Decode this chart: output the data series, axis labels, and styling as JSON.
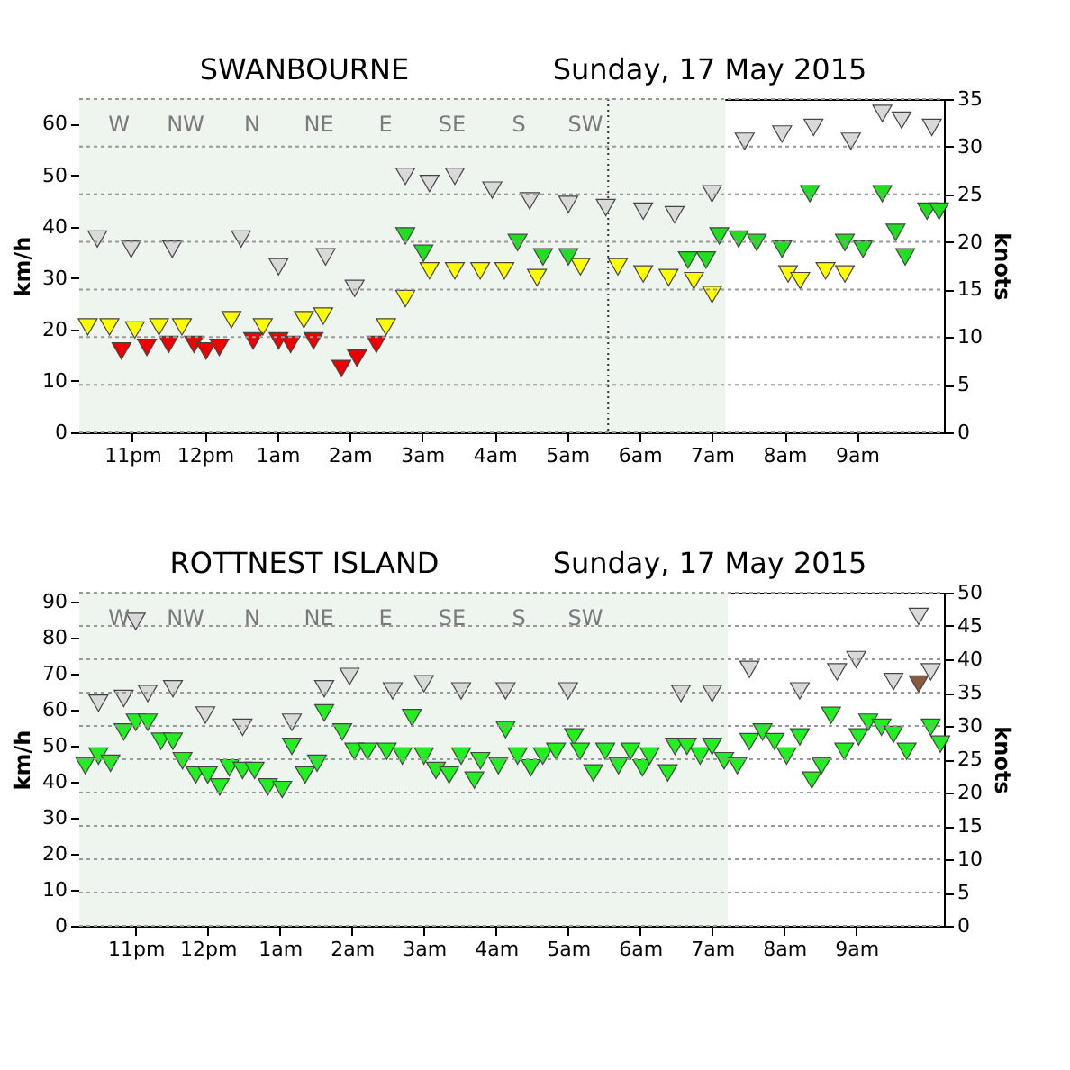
{
  "chart_data": [
    {
      "type": "scatter",
      "title": "SWANBOURNE",
      "subtitle": "Sunday, 17 May 2015",
      "ylabel": "km/h",
      "y2label": "knots",
      "marker": "triangle",
      "grid": "y",
      "annotations": [
        "W",
        "NW",
        "N",
        "NE",
        "E",
        "SE",
        "S",
        "SW"
      ],
      "xlim": [
        "2015-05-16T22:16",
        "2015-05-17T10:12"
      ],
      "xticks": [
        {
          "value": "2015-05-16T23:00",
          "label": "11pm"
        },
        {
          "value": "2015-05-17T00:00",
          "label": "12pm"
        },
        {
          "value": "2015-05-17T01:00",
          "label": "1am"
        },
        {
          "value": "2015-05-17T02:00",
          "label": "2am"
        },
        {
          "value": "2015-05-17T03:00",
          "label": "3am"
        },
        {
          "value": "2015-05-17T04:00",
          "label": "4am"
        },
        {
          "value": "2015-05-17T05:00",
          "label": "5am"
        },
        {
          "value": "2015-05-17T06:00",
          "label": "6am"
        },
        {
          "value": "2015-05-17T07:00",
          "label": "7am"
        },
        {
          "value": "2015-05-17T08:00",
          "label": "8am"
        },
        {
          "value": "2015-05-17T09:00",
          "label": "9am"
        }
      ],
      "ylim": [
        0,
        64.8
      ],
      "yticks": [
        0,
        10,
        20,
        30,
        40,
        50,
        60
      ],
      "y2lim": [
        0,
        35
      ],
      "y2ticks": [
        0,
        5,
        10,
        15,
        20,
        25,
        30,
        35
      ],
      "ref_lines": [
        {
          "axis": "x",
          "value": "2015-05-17T05:34",
          "line_style": "dotted",
          "color": "#333333"
        }
      ],
      "bands": [
        {
          "axis": "x",
          "from": "2015-05-16T22:16",
          "to": "2015-05-17T07:11",
          "color": "#eef5ee"
        }
      ],
      "series": [
        {
          "color": "#d9d9d9",
          "x": [
            "2015-05-16T22:31",
            "2015-05-16T22:59",
            "2015-05-16T23:33",
            "2015-05-17T00:30",
            "2015-05-17T01:01",
            "2015-05-17T01:40",
            "2015-05-17T02:04",
            "2015-05-17T02:46",
            "2015-05-17T03:06",
            "2015-05-17T03:27",
            "2015-05-17T03:58",
            "2015-05-17T04:29",
            "2015-05-17T05:01",
            "2015-05-17T05:32",
            "2015-05-17T06:03",
            "2015-05-17T06:29",
            "2015-05-17T07:00",
            "2015-05-17T07:27",
            "2015-05-17T07:58",
            "2015-05-17T08:24",
            "2015-05-17T08:55",
            "2015-05-17T09:21",
            "2015-05-17T09:37",
            "2015-05-17T10:02"
          ],
          "values": [
            37.6,
            35.6,
            35.6,
            37.6,
            32.2,
            34.1,
            28.0,
            49.8,
            48.4,
            49.8,
            47.1,
            45.0,
            44.3,
            43.7,
            43.0,
            42.3,
            46.4,
            56.6,
            58.0,
            59.3,
            56.6,
            62.0,
            60.7,
            59.3
          ]
        },
        {
          "color": "#ffff00",
          "x": [
            "2015-05-16T22:23",
            "2015-05-16T22:41",
            "2015-05-16T23:02",
            "2015-05-16T23:22",
            "2015-05-16T23:41",
            "2015-05-17T00:22",
            "2015-05-17T00:48",
            "2015-05-17T01:22",
            "2015-05-17T01:38",
            "2015-05-17T02:30",
            "2015-05-17T02:46",
            "2015-05-17T03:06",
            "2015-05-17T03:27",
            "2015-05-17T03:48",
            "2015-05-17T04:08",
            "2015-05-17T04:35",
            "2015-05-17T05:11",
            "2015-05-17T05:42",
            "2015-05-17T06:03",
            "2015-05-17T06:24",
            "2015-05-17T06:45",
            "2015-05-17T07:00",
            "2015-05-17T08:03",
            "2015-05-17T08:13",
            "2015-05-17T08:34",
            "2015-05-17T08:50"
          ],
          "values": [
            20.5,
            20.5,
            19.9,
            20.5,
            20.5,
            21.9,
            20.5,
            21.9,
            22.6,
            20.5,
            26.0,
            31.4,
            31.4,
            31.4,
            31.4,
            30.1,
            32.2,
            32.2,
            30.8,
            30.1,
            29.5,
            26.8,
            30.8,
            29.5,
            31.4,
            30.8
          ]
        },
        {
          "color": "#ee0000",
          "x": [
            "2015-05-16T22:51",
            "2015-05-16T23:12",
            "2015-05-16T23:30",
            "2015-05-16T23:51",
            "2015-05-17T00:01",
            "2015-05-17T00:12",
            "2015-05-17T00:40",
            "2015-05-17T01:01",
            "2015-05-17T01:11",
            "2015-05-17T01:30",
            "2015-05-17T01:53",
            "2015-05-17T02:06",
            "2015-05-17T02:22"
          ],
          "values": [
            15.8,
            16.5,
            17.1,
            17.1,
            15.8,
            16.5,
            17.8,
            17.8,
            17.1,
            17.8,
            12.4,
            14.4,
            17.1
          ]
        },
        {
          "color": "#22dd22",
          "x": [
            "2015-05-17T02:46",
            "2015-05-17T03:01",
            "2015-05-17T04:19",
            "2015-05-17T04:40",
            "2015-05-17T05:01",
            "2015-05-17T06:40",
            "2015-05-17T06:55",
            "2015-05-17T07:06",
            "2015-05-17T07:22",
            "2015-05-17T07:37",
            "2015-05-17T07:58",
            "2015-05-17T08:21",
            "2015-05-17T08:50",
            "2015-05-17T09:05",
            "2015-05-17T09:21",
            "2015-05-17T09:32",
            "2015-05-17T09:40",
            "2015-05-17T09:58",
            "2015-05-17T10:08"
          ],
          "values": [
            38.2,
            34.8,
            36.9,
            34.1,
            34.1,
            33.5,
            33.5,
            38.2,
            37.6,
            36.9,
            35.6,
            46.4,
            36.9,
            35.6,
            46.4,
            38.9,
            34.1,
            43.0,
            43.0
          ]
        }
      ]
    },
    {
      "type": "scatter",
      "title": "ROTTNEST ISLAND",
      "subtitle": "Sunday, 17 May 2015",
      "ylabel": "km/h",
      "y2label": "knots",
      "marker": "triangle",
      "grid": "y",
      "annotations": [
        "W",
        "NW",
        "N",
        "NE",
        "E",
        "SE",
        "S",
        "SW"
      ],
      "xlim": [
        "2015-05-16T22:13",
        "2015-05-17T10:13"
      ],
      "xticks": [
        {
          "value": "2015-05-16T23:00",
          "label": "11pm"
        },
        {
          "value": "2015-05-17T00:00",
          "label": "12pm"
        },
        {
          "value": "2015-05-17T01:00",
          "label": "1am"
        },
        {
          "value": "2015-05-17T02:00",
          "label": "2am"
        },
        {
          "value": "2015-05-17T03:00",
          "label": "3am"
        },
        {
          "value": "2015-05-17T04:00",
          "label": "4am"
        },
        {
          "value": "2015-05-17T05:00",
          "label": "5am"
        },
        {
          "value": "2015-05-17T06:00",
          "label": "6am"
        },
        {
          "value": "2015-05-17T07:00",
          "label": "7am"
        },
        {
          "value": "2015-05-17T08:00",
          "label": "8am"
        },
        {
          "value": "2015-05-17T09:00",
          "label": "9am"
        }
      ],
      "ylim": [
        0,
        92.6
      ],
      "yticks": [
        0,
        10,
        20,
        30,
        40,
        50,
        60,
        70,
        80,
        90
      ],
      "y2lim": [
        0,
        50
      ],
      "y2ticks": [
        0,
        5,
        10,
        15,
        20,
        25,
        30,
        35,
        40,
        45,
        50
      ],
      "bands": [
        {
          "axis": "x",
          "from": "2015-05-16T22:13",
          "to": "2015-05-17T07:13",
          "color": "#eef5ee"
        }
      ],
      "series": [
        {
          "color": "#d9d9d9",
          "x": [
            "2015-05-16T22:29",
            "2015-05-16T22:50",
            "2015-05-16T23:00",
            "2015-05-16T23:10",
            "2015-05-16T23:31",
            "2015-05-16T23:58",
            "2015-05-17T00:29",
            "2015-05-17T01:10",
            "2015-05-17T01:37",
            "2015-05-17T01:58",
            "2015-05-17T02:34",
            "2015-05-17T03:00",
            "2015-05-17T03:31",
            "2015-05-17T04:08",
            "2015-05-17T05:00",
            "2015-05-17T06:34",
            "2015-05-17T07:00",
            "2015-05-17T07:31",
            "2015-05-17T08:13",
            "2015-05-17T08:44",
            "2015-05-17T09:00",
            "2015-05-17T09:31",
            "2015-05-17T09:52",
            "2015-05-17T10:02"
          ],
          "values": [
            61.9,
            63.2,
            84.6,
            64.6,
            65.9,
            58.6,
            55.2,
            56.6,
            65.9,
            69.3,
            65.3,
            67.3,
            65.3,
            65.3,
            65.3,
            64.6,
            64.6,
            71.3,
            65.3,
            70.6,
            74.0,
            67.9,
            86.0,
            70.6
          ]
        },
        {
          "color": "#22ee22",
          "x": [
            "2015-05-16T22:18",
            "2015-05-16T22:29",
            "2015-05-16T22:39",
            "2015-05-16T22:50",
            "2015-05-16T23:00",
            "2015-05-16T23:10",
            "2015-05-16T23:21",
            "2015-05-16T23:31",
            "2015-05-16T23:39",
            "2015-05-16T23:50",
            "2015-05-17T00:00",
            "2015-05-17T00:10",
            "2015-05-17T00:18",
            "2015-05-17T00:29",
            "2015-05-17T00:39",
            "2015-05-17T00:50",
            "2015-05-17T01:02",
            "2015-05-17T01:10",
            "2015-05-17T01:21",
            "2015-05-17T01:31",
            "2015-05-17T01:37",
            "2015-05-17T01:52",
            "2015-05-17T02:02",
            "2015-05-17T02:13",
            "2015-05-17T02:29",
            "2015-05-17T02:42",
            "2015-05-17T02:50",
            "2015-05-17T03:00",
            "2015-05-17T03:10",
            "2015-05-17T03:21",
            "2015-05-17T03:31",
            "2015-05-17T03:42",
            "2015-05-17T03:47",
            "2015-05-17T04:02",
            "2015-05-17T04:08",
            "2015-05-17T04:18",
            "2015-05-17T04:29",
            "2015-05-17T04:39",
            "2015-05-17T04:50",
            "2015-05-17T05:05",
            "2015-05-17T05:10",
            "2015-05-17T05:21",
            "2015-05-17T05:31",
            "2015-05-17T05:42",
            "2015-05-17T05:52",
            "2015-05-17T06:02",
            "2015-05-17T06:08",
            "2015-05-17T06:23",
            "2015-05-17T06:29",
            "2015-05-17T06:39",
            "2015-05-17T06:50",
            "2015-05-17T07:00",
            "2015-05-17T07:10",
            "2015-05-17T07:21",
            "2015-05-17T07:31",
            "2015-05-17T07:42",
            "2015-05-17T07:52",
            "2015-05-17T08:02",
            "2015-05-17T08:13",
            "2015-05-17T08:23",
            "2015-05-17T08:31",
            "2015-05-17T08:39",
            "2015-05-17T08:50",
            "2015-05-17T09:02",
            "2015-05-17T09:10",
            "2015-05-17T09:21",
            "2015-05-17T09:31",
            "2015-05-17T09:42",
            "2015-05-17T10:02",
            "2015-05-17T10:10"
          ],
          "values": [
            44.5,
            47.2,
            45.2,
            53.9,
            56.6,
            56.6,
            51.3,
            51.3,
            45.9,
            41.9,
            41.9,
            38.6,
            43.9,
            43.2,
            43.2,
            38.6,
            37.9,
            49.9,
            41.9,
            45.2,
            59.2,
            53.9,
            48.5,
            48.5,
            48.5,
            47.2,
            57.9,
            47.2,
            43.2,
            41.9,
            47.2,
            40.5,
            45.9,
            44.5,
            54.5,
            47.2,
            43.9,
            47.2,
            48.5,
            52.5,
            48.5,
            42.5,
            48.5,
            44.5,
            48.5,
            43.9,
            47.2,
            42.5,
            49.9,
            49.9,
            47.2,
            49.9,
            45.9,
            44.5,
            51.2,
            53.9,
            51.2,
            47.2,
            52.5,
            40.5,
            44.5,
            58.5,
            48.5,
            52.5,
            56.6,
            55.2,
            53.2,
            48.5,
            55.2,
            50.5
          ]
        },
        {
          "color": "#8b5a3c",
          "x": [
            "2015-05-17T09:52"
          ],
          "values": [
            67.2
          ]
        }
      ]
    }
  ]
}
